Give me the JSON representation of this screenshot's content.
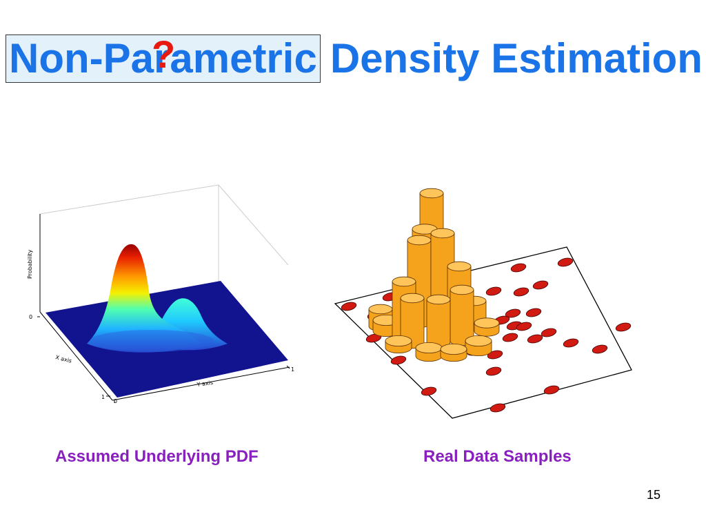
{
  "slide": {
    "title_boxed": "Non-Parametric",
    "title_rest": "Density Estimation",
    "question_mark": "?",
    "page_number": "15"
  },
  "left_figure": {
    "caption": "Assumed Underlying PDF",
    "z_label": "Probability",
    "x_label": "X axis",
    "y_label": "Y axis",
    "ticks": {
      "z_zero": "0",
      "x_one": "1",
      "x_zero": "0",
      "y_one": "1"
    }
  },
  "right_figure": {
    "caption": "Real Data Samples"
  },
  "colors": {
    "title_blue": "#1a74e8",
    "question_red": "#e8190f",
    "caption_purple": "#8a1fbf",
    "surface_floor": "#12138f",
    "sample_red": "#d11a12",
    "bar_orange": "#f5a31d"
  }
}
